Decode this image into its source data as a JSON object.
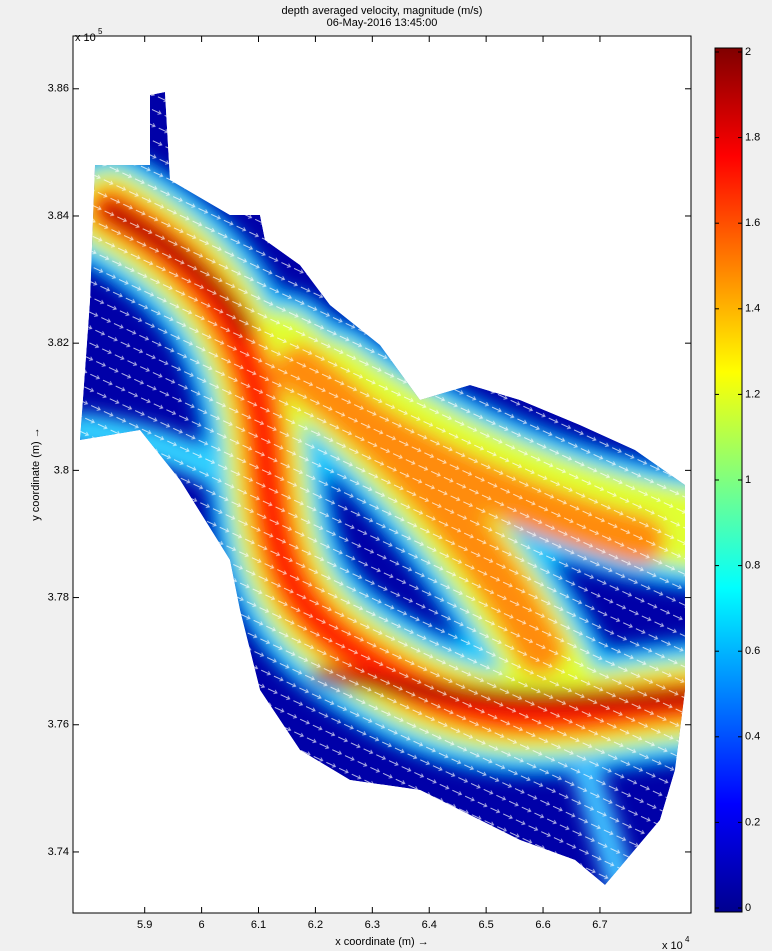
{
  "chart_data": {
    "type": "heatmap",
    "title": "depth averaged velocity, magnitude (m/s)",
    "subtitle": "06-May-2016 13:45:00",
    "xlabel": "x coordinate (m) →",
    "ylabel": "y coordinate (m) →",
    "x_multiplier": "x 10",
    "x_exponent": "4",
    "y_multiplier": "x 10",
    "y_exponent": "5",
    "xlim": [
      5.774,
      6.86
    ],
    "xticks": [
      5.9,
      6,
      6.1,
      6.2,
      6.3,
      6.4,
      6.5,
      6.6,
      6.7
    ],
    "ylim": [
      3.7304,
      3.8683
    ],
    "yticks": [
      3.74,
      3.76,
      3.78,
      3.8,
      3.82,
      3.84,
      3.86
    ],
    "colorbar": {
      "lim": [
        0,
        2
      ],
      "ticks": [
        0,
        0.2,
        0.4,
        0.6,
        0.8,
        1,
        1.2,
        1.4,
        1.6,
        1.8,
        2
      ]
    }
  }
}
